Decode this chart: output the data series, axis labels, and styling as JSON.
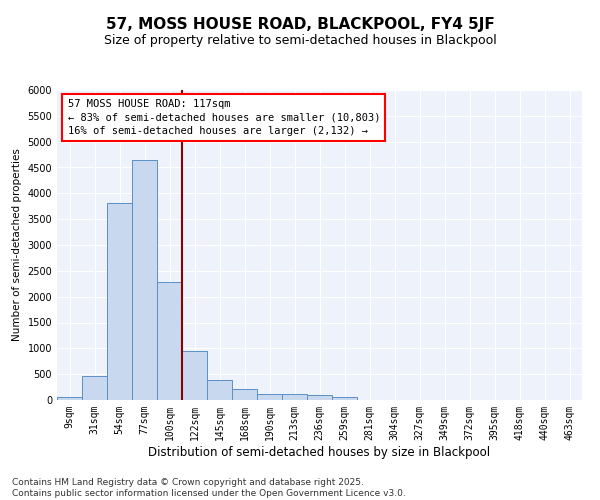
{
  "title": "57, MOSS HOUSE ROAD, BLACKPOOL, FY4 5JF",
  "subtitle": "Size of property relative to semi-detached houses in Blackpool",
  "xlabel": "Distribution of semi-detached houses by size in Blackpool",
  "ylabel": "Number of semi-detached properties",
  "categories": [
    "9sqm",
    "31sqm",
    "54sqm",
    "77sqm",
    "100sqm",
    "122sqm",
    "145sqm",
    "168sqm",
    "190sqm",
    "213sqm",
    "236sqm",
    "259sqm",
    "281sqm",
    "304sqm",
    "327sqm",
    "349sqm",
    "372sqm",
    "395sqm",
    "418sqm",
    "440sqm",
    "463sqm"
  ],
  "values": [
    50,
    470,
    3820,
    4650,
    2280,
    950,
    380,
    210,
    120,
    120,
    100,
    50,
    0,
    0,
    0,
    0,
    0,
    0,
    0,
    0,
    0
  ],
  "bar_color": "#c8d9ef",
  "bar_edge_color": "#5b8fc7",
  "vline_color": "#8b0000",
  "annotation_text": "57 MOSS HOUSE ROAD: 117sqm\n← 83% of semi-detached houses are smaller (10,803)\n16% of semi-detached houses are larger (2,132) →",
  "ylim": [
    0,
    6000
  ],
  "yticks": [
    0,
    500,
    1000,
    1500,
    2000,
    2500,
    3000,
    3500,
    4000,
    4500,
    5000,
    5500,
    6000
  ],
  "background_color": "#eef2fa",
  "grid_color": "#ffffff",
  "footer": "Contains HM Land Registry data © Crown copyright and database right 2025.\nContains public sector information licensed under the Open Government Licence v3.0.",
  "title_fontsize": 11,
  "subtitle_fontsize": 9,
  "xlabel_fontsize": 8.5,
  "ylabel_fontsize": 7.5,
  "tick_fontsize": 7,
  "annotation_fontsize": 7.5,
  "footer_fontsize": 6.5
}
